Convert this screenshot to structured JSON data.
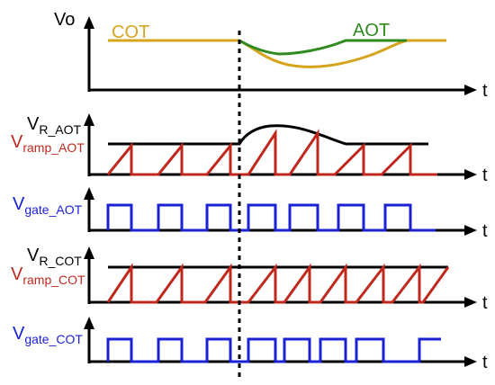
{
  "diagram": {
    "time_label": "t",
    "panel_vo": {
      "axis_label": "Vo",
      "cot_label": "COT",
      "aot_label": "AOT"
    },
    "panel_aot_ramp": {
      "ref_main": "V",
      "ref_sub": "R_AOT",
      "ramp_main": "V",
      "ramp_sub": "ramp_AOT"
    },
    "panel_aot_gate": {
      "gate_main": "V",
      "gate_sub": "gate_AOT"
    },
    "panel_cot_ramp": {
      "ref_main": "V",
      "ref_sub": "R_COT",
      "ramp_main": "V",
      "ramp_sub": "ramp_COT"
    },
    "panel_cot_gate": {
      "gate_main": "V",
      "gate_sub": "gate_COT"
    },
    "colors": {
      "axis": "#000000",
      "cot_vo": "#d6a51d",
      "aot_vo": "#2f8a1f",
      "ramp": "#c0281e",
      "gate": "#1a22d4",
      "reference": "#000000",
      "transient_marker": "#000000"
    }
  }
}
